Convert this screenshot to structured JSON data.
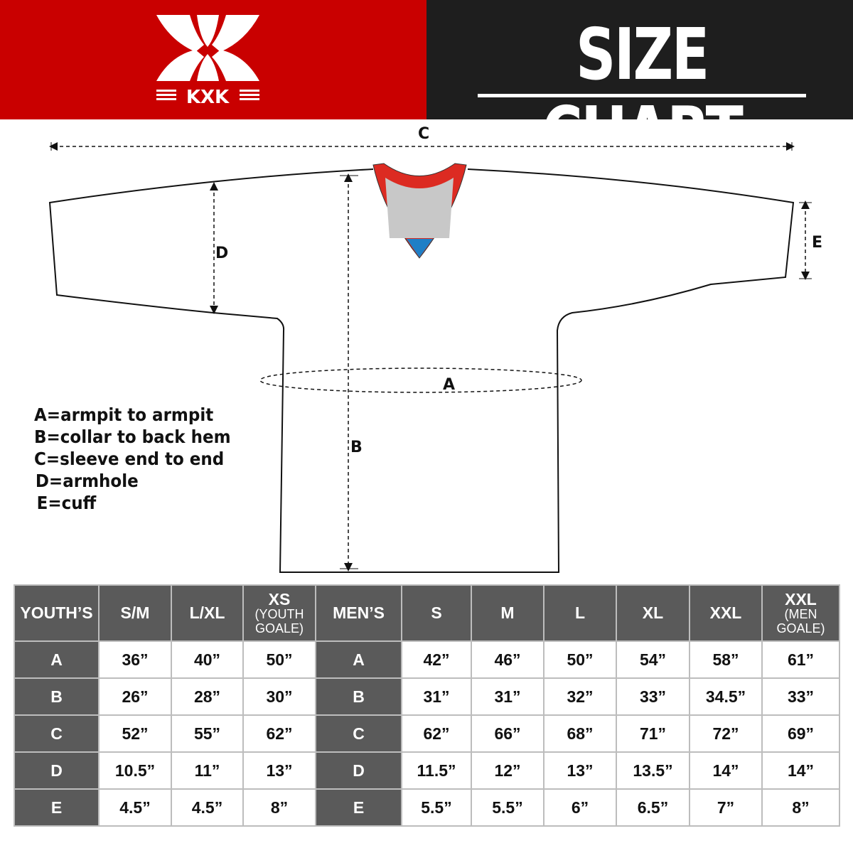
{
  "brand": {
    "logo_text": "KXK",
    "colors": {
      "red": "#c90000",
      "dark": "#1e1e1e",
      "cell_dark": "#5a5a5a"
    }
  },
  "header": {
    "title": "SIZE CHART"
  },
  "diagram": {
    "labels": {
      "a": "A",
      "b": "B",
      "c": "C",
      "d": "D",
      "e": "E"
    }
  },
  "legend": [
    "A=armpit to armpit",
    "B=collar to back hem",
    "C=sleeve end to end",
    "D=armhole",
    "E=cuff"
  ],
  "table": {
    "youth": {
      "label": "YOUTH’S",
      "columns": [
        {
          "size": "S/M"
        },
        {
          "size": "L/XL"
        },
        {
          "size": "XS",
          "note": "(YOUTH GOALE)"
        }
      ],
      "rows": [
        {
          "key": "A",
          "values": [
            "36”",
            "40”",
            "50”"
          ]
        },
        {
          "key": "B",
          "values": [
            "26”",
            "28”",
            "30”"
          ]
        },
        {
          "key": "C",
          "values": [
            "52”",
            "55”",
            "62”"
          ]
        },
        {
          "key": "D",
          "values": [
            "10.5”",
            "11”",
            "13”"
          ]
        },
        {
          "key": "E",
          "values": [
            "4.5”",
            "4.5”",
            "8”"
          ]
        }
      ]
    },
    "men": {
      "label": "MEN’S",
      "columns": [
        {
          "size": "S"
        },
        {
          "size": "M"
        },
        {
          "size": "L"
        },
        {
          "size": "XL"
        },
        {
          "size": "XXL"
        },
        {
          "size": "XXL",
          "note": "(MEN GOALE)"
        }
      ],
      "rows": [
        {
          "key": "A",
          "values": [
            "42”",
            "46”",
            "50”",
            "54”",
            "58”",
            "61”"
          ]
        },
        {
          "key": "B",
          "values": [
            "31”",
            "31”",
            "32”",
            "33”",
            "34.5”",
            "33”"
          ]
        },
        {
          "key": "C",
          "values": [
            "62”",
            "66”",
            "68”",
            "71”",
            "72”",
            "69”"
          ]
        },
        {
          "key": "D",
          "values": [
            "11.5”",
            "12”",
            "13”",
            "13.5”",
            "14”",
            "14”"
          ]
        },
        {
          "key": "E",
          "values": [
            "5.5”",
            "5.5”",
            "6”",
            "6.5”",
            "7”",
            "8”"
          ]
        }
      ]
    }
  }
}
